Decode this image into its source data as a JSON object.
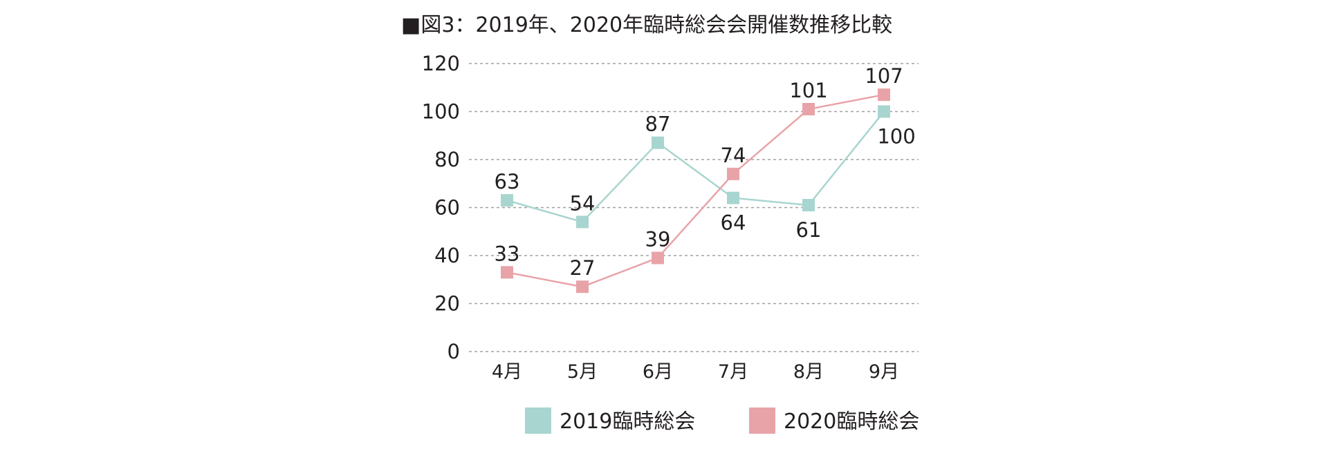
{
  "chart_data": {
    "type": "line",
    "title": "■図3：2019年、2020年臨時総会会開催数推移比較",
    "categories": [
      "4月",
      "5月",
      "6月",
      "7月",
      "8月",
      "9月"
    ],
    "ylim": [
      0,
      120
    ],
    "yticks": [
      0,
      20,
      40,
      60,
      80,
      100,
      120
    ],
    "grid": true,
    "legend_position": "bottom",
    "series": [
      {
        "name": "2019臨時総会",
        "color": "#a8d5cf",
        "values": [
          63,
          54,
          87,
          64,
          61,
          100
        ],
        "labels": [
          "63",
          "54",
          "87",
          "64",
          "61",
          "100"
        ],
        "label_side": [
          "above",
          "above",
          "above",
          "below",
          "below",
          "below"
        ]
      },
      {
        "name": "2020臨時総会",
        "color": "#e8a3a8",
        "values": [
          33,
          27,
          39,
          74,
          101,
          107
        ],
        "labels": [
          "33",
          "27",
          "39",
          "74",
          "101",
          "107"
        ],
        "label_side": [
          "above",
          "above",
          "above",
          "above",
          "above",
          "above"
        ]
      }
    ]
  }
}
